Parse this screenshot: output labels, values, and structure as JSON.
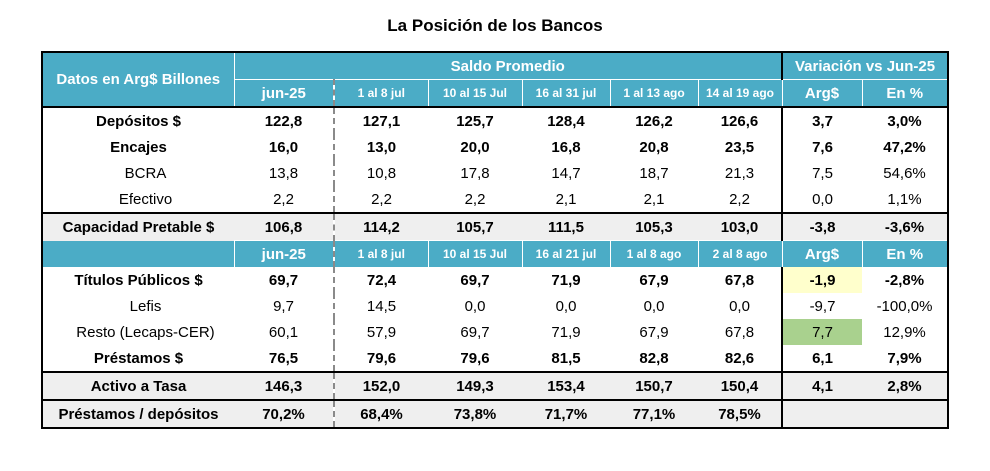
{
  "title": "La Posición de los Bancos",
  "header": {
    "row_label": "Datos en Arg$ Billones",
    "group_saldo": "Saldo Promedio",
    "group_var": "Variación vs Jun-25",
    "cols_1": [
      "jun-25",
      "1 al 8 jul",
      "10 al 15 Jul",
      "16 al 31 jul",
      "1 al 13 ago",
      "14 al 19 ago"
    ],
    "cols_2": [
      "jun-25",
      "1 al 8 jul",
      "10 al 15 Jul",
      "16 al 21 jul",
      "1 al 8 ago",
      "2 al 8 ago"
    ],
    "var_cols": [
      "Arg$",
      "En %"
    ]
  },
  "section1": [
    {
      "label": "Depósitos $",
      "bold": true,
      "values": [
        "122,8",
        "127,1",
        "125,7",
        "128,4",
        "126,2",
        "126,6",
        "3,7",
        "3,0%"
      ]
    },
    {
      "label": "Encajes",
      "bold": true,
      "values": [
        "16,0",
        "13,0",
        "20,0",
        "16,8",
        "20,8",
        "23,5",
        "7,6",
        "47,2%"
      ]
    },
    {
      "label": "BCRA",
      "bold": false,
      "values": [
        "13,8",
        "10,8",
        "17,8",
        "14,7",
        "18,7",
        "21,3",
        "7,5",
        "54,6%"
      ]
    },
    {
      "label": "Efectivo",
      "bold": false,
      "values": [
        "2,2",
        "2,2",
        "2,2",
        "2,1",
        "2,1",
        "2,2",
        "0,0",
        "1,1%"
      ]
    }
  ],
  "capacidad": {
    "label": "Capacidad Pretable $",
    "values": [
      "106,8",
      "114,2",
      "105,7",
      "111,5",
      "105,3",
      "103,0",
      "-3,8",
      "-3,6%"
    ]
  },
  "section2": [
    {
      "label": "Títulos Públicos $",
      "bold": true,
      "values": [
        "69,7",
        "72,4",
        "69,7",
        "71,9",
        "67,9",
        "67,8",
        "-1,9",
        "-2,8%"
      ]
    },
    {
      "label": "Lefis",
      "bold": false,
      "values": [
        "9,7",
        "14,5",
        "0,0",
        "0,0",
        "0,0",
        "0,0",
        "-9,7",
        "-100,0%"
      ]
    },
    {
      "label": "Resto (Lecaps-CER)",
      "bold": false,
      "values": [
        "60,1",
        "57,9",
        "69,7",
        "71,9",
        "67,9",
        "67,8",
        "7,7",
        "12,9%"
      ]
    },
    {
      "label": "Préstamos $",
      "bold": true,
      "values": [
        "76,5",
        "79,6",
        "79,6",
        "81,5",
        "82,8",
        "82,6",
        "6,1",
        "7,9%"
      ]
    }
  ],
  "activo": {
    "label": "Activo a Tasa",
    "values": [
      "146,3",
      "152,0",
      "149,3",
      "153,4",
      "150,7",
      "150,4",
      "4,1",
      "2,8%"
    ]
  },
  "ratio": {
    "label": "Préstamos / depósitos",
    "values": [
      "70,2%",
      "68,4%",
      "73,8%",
      "71,7%",
      "77,1%",
      "78,5%"
    ]
  },
  "highlight_colors": {
    "yellow": "#ffffcc",
    "green": "#a9d18e",
    "header": "#4bacc6"
  }
}
